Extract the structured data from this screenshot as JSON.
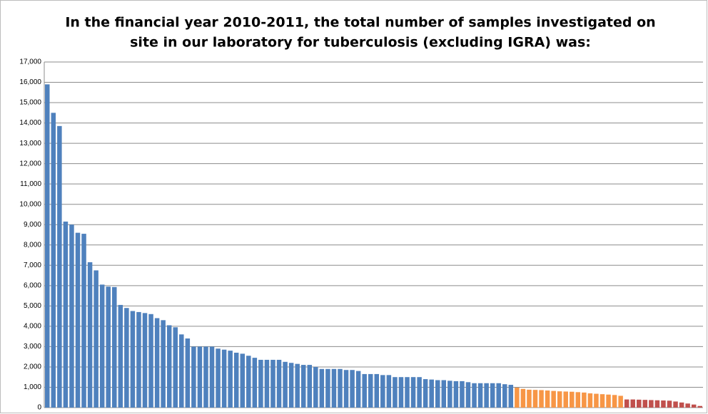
{
  "chart_data": {
    "type": "bar",
    "title": [
      "In the financial year 2010-2011, the total number of samples investigated on",
      "site in our laboratory for tuberculosis (excluding IGRA) was:"
    ],
    "categories": [
      null,
      null,
      null,
      null,
      null,
      null,
      null,
      null,
      null,
      null,
      null,
      null,
      null,
      null,
      null,
      null,
      null,
      null,
      null,
      null,
      null,
      null,
      null,
      null,
      null,
      null,
      null,
      null,
      null,
      null,
      null,
      null,
      null,
      null,
      null,
      null,
      null,
      null,
      null,
      null,
      null,
      null,
      null,
      null,
      null,
      null,
      null,
      null,
      null,
      null,
      null,
      null,
      null,
      null,
      null,
      null,
      null,
      null,
      null,
      null,
      null,
      null,
      null,
      null,
      null,
      null,
      null,
      null,
      null,
      null,
      null,
      null,
      null,
      null,
      null,
      null,
      null,
      null,
      null,
      null,
      null,
      null,
      null,
      null,
      null,
      null,
      null,
      null,
      null,
      null,
      null,
      null,
      null,
      null,
      null,
      null,
      null,
      null,
      null,
      null,
      null,
      null,
      null,
      null,
      null,
      null,
      null,
      null
    ],
    "values": [
      15900,
      14500,
      13850,
      9150,
      9000,
      8600,
      8550,
      7150,
      6750,
      6050,
      5950,
      5930,
      5050,
      4900,
      4750,
      4700,
      4650,
      4600,
      4400,
      4300,
      4050,
      3950,
      3600,
      3400,
      3000,
      3000,
      3000,
      3000,
      2900,
      2850,
      2800,
      2700,
      2650,
      2550,
      2450,
      2350,
      2350,
      2350,
      2350,
      2250,
      2200,
      2150,
      2100,
      2100,
      2000,
      1900,
      1900,
      1900,
      1900,
      1850,
      1850,
      1800,
      1650,
      1650,
      1650,
      1600,
      1600,
      1500,
      1500,
      1500,
      1500,
      1500,
      1400,
      1380,
      1350,
      1350,
      1320,
      1300,
      1300,
      1250,
      1200,
      1200,
      1200,
      1200,
      1200,
      1150,
      1120,
      980,
      920,
      880,
      870,
      860,
      840,
      820,
      800,
      790,
      780,
      760,
      740,
      700,
      680,
      660,
      640,
      620,
      580,
      400,
      400,
      390,
      380,
      370,
      360,
      350,
      340,
      300,
      250,
      200,
      150,
      80
    ],
    "colors": [
      "#4f81bd",
      "#4f81bd",
      "#4f81bd",
      "#4f81bd",
      "#4f81bd",
      "#4f81bd",
      "#4f81bd",
      "#4f81bd",
      "#4f81bd",
      "#4f81bd",
      "#4f81bd",
      "#4f81bd",
      "#4f81bd",
      "#4f81bd",
      "#4f81bd",
      "#4f81bd",
      "#4f81bd",
      "#4f81bd",
      "#4f81bd",
      "#4f81bd",
      "#4f81bd",
      "#4f81bd",
      "#4f81bd",
      "#4f81bd",
      "#4f81bd",
      "#4f81bd",
      "#4f81bd",
      "#4f81bd",
      "#4f81bd",
      "#4f81bd",
      "#4f81bd",
      "#4f81bd",
      "#4f81bd",
      "#4f81bd",
      "#4f81bd",
      "#4f81bd",
      "#4f81bd",
      "#4f81bd",
      "#4f81bd",
      "#4f81bd",
      "#4f81bd",
      "#4f81bd",
      "#4f81bd",
      "#4f81bd",
      "#4f81bd",
      "#4f81bd",
      "#4f81bd",
      "#4f81bd",
      "#4f81bd",
      "#4f81bd",
      "#4f81bd",
      "#4f81bd",
      "#4f81bd",
      "#4f81bd",
      "#4f81bd",
      "#4f81bd",
      "#4f81bd",
      "#4f81bd",
      "#4f81bd",
      "#4f81bd",
      "#4f81bd",
      "#4f81bd",
      "#4f81bd",
      "#4f81bd",
      "#4f81bd",
      "#4f81bd",
      "#4f81bd",
      "#4f81bd",
      "#4f81bd",
      "#4f81bd",
      "#4f81bd",
      "#4f81bd",
      "#4f81bd",
      "#4f81bd",
      "#4f81bd",
      "#4f81bd",
      "#4f81bd",
      "#f79646",
      "#f79646",
      "#f79646",
      "#f79646",
      "#f79646",
      "#f79646",
      "#f79646",
      "#f79646",
      "#f79646",
      "#f79646",
      "#f79646",
      "#f79646",
      "#f79646",
      "#f79646",
      "#f79646",
      "#f79646",
      "#f79646",
      "#f79646",
      "#c0504d",
      "#c0504d",
      "#c0504d",
      "#c0504d",
      "#c0504d",
      "#c0504d",
      "#c0504d",
      "#c0504d",
      "#c0504d",
      "#c0504d",
      "#c0504d",
      "#c0504d",
      "#c0504d"
    ],
    "ylim": [
      0,
      17000
    ],
    "yticks": [
      0,
      {
        "value": 1000,
        "label": "1,000"
      },
      {
        "value": 2000,
        "label": "2,000"
      },
      {
        "value": 3000,
        "label": "3,000"
      },
      {
        "value": 4000,
        "label": "4,000"
      },
      {
        "value": 5000,
        "label": "5,000"
      },
      {
        "value": 6000,
        "label": "6,000"
      },
      {
        "value": 7000,
        "label": "7,000"
      },
      {
        "value": 8000,
        "label": "8,000"
      },
      {
        "value": 9000,
        "label": "9,000"
      },
      {
        "value": 10000,
        "label": "10,000"
      },
      {
        "value": 11000,
        "label": "11,000"
      },
      {
        "value": 12000,
        "label": "12,000"
      },
      {
        "value": 13000,
        "label": "13,000"
      },
      {
        "value": 14000,
        "label": "14,000"
      },
      {
        "value": 15000,
        "label": "15,000"
      },
      {
        "value": 16000,
        "label": "16,000"
      },
      {
        "value": 17000,
        "label": "17,000"
      }
    ],
    "grid": true
  }
}
